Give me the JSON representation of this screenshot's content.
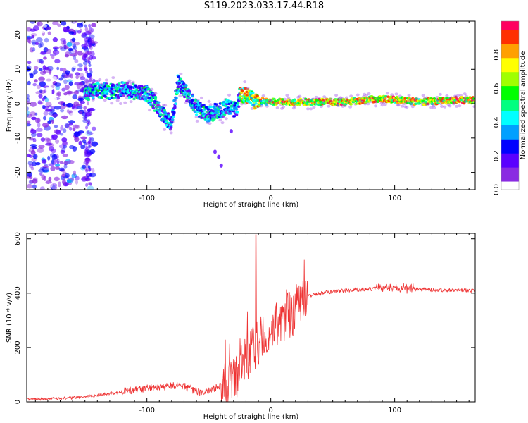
{
  "title": "S119.2023.033.17.44.R18",
  "chart_data": [
    {
      "type": "heatmap",
      "xlabel": "Height of straight line (km)",
      "ylabel": "Frequency (Hz)",
      "xlim": [
        -197,
        165
      ],
      "ylim": [
        -25,
        24
      ],
      "x_ticks": [
        -100,
        0,
        100
      ],
      "y_ticks": [
        -20,
        -10,
        0,
        10,
        20
      ],
      "grid": false,
      "colorbar": {
        "label": "Normalized spectral amplitude",
        "range": [
          0,
          1
        ],
        "ticks": [
          "0.0",
          "0.2",
          "0.4",
          "0.6",
          "0.8"
        ],
        "colors": [
          "#ffffff",
          "#8a2be2",
          "#5a00ff",
          "#0000ff",
          "#00a0ff",
          "#00ffff",
          "#00ff80",
          "#00ff00",
          "#a0ff00",
          "#ffff00",
          "#ffa000",
          "#ff3000",
          "#ff0060"
        ]
      },
      "ridge": {
        "x": [
          -150,
          -140,
          -130,
          -120,
          -110,
          -100,
          -95,
          -90,
          -85,
          -80,
          -75,
          -72,
          -68,
          -64,
          -60,
          -56,
          -52,
          -48,
          -44,
          -40,
          -36,
          -32,
          -28,
          -25,
          -22,
          -18,
          -14,
          -10,
          -6,
          -3,
          0,
          10,
          30,
          60,
          90,
          120,
          150,
          165
        ],
        "y": [
          3,
          4,
          3.5,
          4,
          3.5,
          3,
          1,
          -2,
          -4,
          -6,
          6,
          5,
          3,
          1,
          -1,
          -2,
          -3,
          -3,
          -2,
          -2,
          -1,
          -1,
          -2,
          2.5,
          2.5,
          2,
          1,
          0,
          1,
          0.5,
          0.5,
          0.5,
          0.5,
          0.5,
          1.5,
          0.5,
          1,
          1
        ]
      }
    },
    {
      "type": "line",
      "xlabel": "Height of straight line (km)",
      "ylabel": "SNR (10 * v/v)",
      "xlim": [
        -197,
        165
      ],
      "ylim": [
        0,
        620
      ],
      "x_ticks": [
        -100,
        0,
        100
      ],
      "y_ticks": [
        0,
        200,
        400,
        600
      ],
      "color": "#ee3333",
      "series_envelope": {
        "x": [
          -197,
          -170,
          -150,
          -130,
          -110,
          -100,
          -90,
          -80,
          -70,
          -60,
          -50,
          -40,
          -30,
          -20,
          -10,
          0,
          10,
          20,
          30,
          40,
          60,
          80,
          100,
          120,
          140,
          165
        ],
        "y": [
          10,
          12,
          18,
          30,
          45,
          50,
          55,
          60,
          60,
          35,
          40,
          60,
          80,
          150,
          220,
          260,
          300,
          340,
          390,
          400,
          410,
          415,
          420,
          415,
          410,
          410
        ]
      },
      "spike": {
        "x": -12,
        "y": 615
      }
    }
  ]
}
